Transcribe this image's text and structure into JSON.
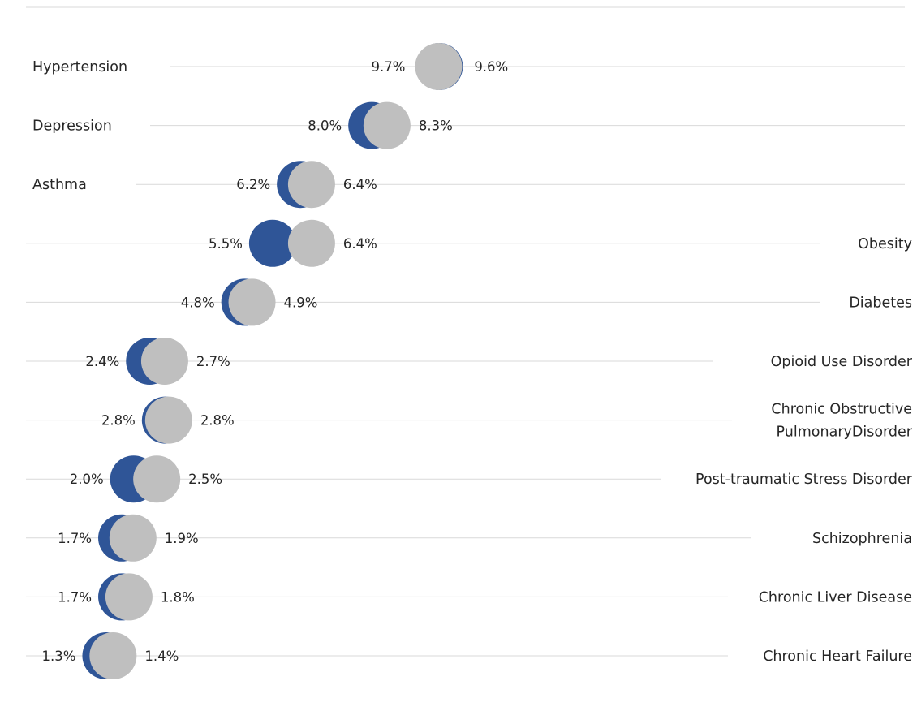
{
  "chart_data": {
    "type": "scatter",
    "title": "",
    "xlabel": "",
    "ylabel": "",
    "xlim": [
      0.8,
      10.0
    ],
    "grid": true,
    "colors": {
      "series_a": "#2f5597",
      "series_b": "#bfbfbf",
      "gridline": "#d9d9d9",
      "text": "#262626"
    },
    "series": [
      {
        "values": [
          9.7,
          8.0,
          6.2,
          5.5,
          4.8,
          2.4,
          2.8,
          2.0,
          1.7,
          1.7,
          1.3
        ]
      },
      {
        "values": [
          9.6,
          8.3,
          6.4,
          6.4,
          4.9,
          2.7,
          2.8,
          2.5,
          1.9,
          1.8,
          1.4
        ]
      }
    ],
    "rows": [
      {
        "label": [
          "Hypertension"
        ],
        "side": "left",
        "a_label": "9.7%",
        "b_label": "9.6%"
      },
      {
        "label": [
          "Depression"
        ],
        "side": "left",
        "a_label": "8.0%",
        "b_label": "8.3%"
      },
      {
        "label": [
          "Asthma"
        ],
        "side": "left",
        "a_label": "6.2%",
        "b_label": "6.4%"
      },
      {
        "label": [
          "Obesity"
        ],
        "side": "right",
        "a_label": "5.5%",
        "b_label": "6.4%"
      },
      {
        "label": [
          "Diabetes"
        ],
        "side": "right",
        "a_label": "4.8%",
        "b_label": "4.9%"
      },
      {
        "label": [
          "Opioid Use Disorder"
        ],
        "side": "right",
        "a_label": "2.4%",
        "b_label": "2.7%"
      },
      {
        "label": [
          "Chronic Obstructive",
          "PulmonaryDisorder"
        ],
        "side": "right",
        "a_label": "2.8%",
        "b_label": "2.8%"
      },
      {
        "label": [
          "Post-traumatic Stress Disorder"
        ],
        "side": "right",
        "a_label": "2.0%",
        "b_label": "2.5%"
      },
      {
        "label": [
          "Schizophrenia"
        ],
        "side": "right",
        "a_label": "1.7%",
        "b_label": "1.9%"
      },
      {
        "label": [
          "Chronic Liver Disease"
        ],
        "side": "right",
        "a_label": "1.7%",
        "b_label": "1.8%"
      },
      {
        "label": [
          "Chronic Heart Failure"
        ],
        "side": "right",
        "a_label": "1.3%",
        "b_label": "1.4%"
      }
    ]
  }
}
